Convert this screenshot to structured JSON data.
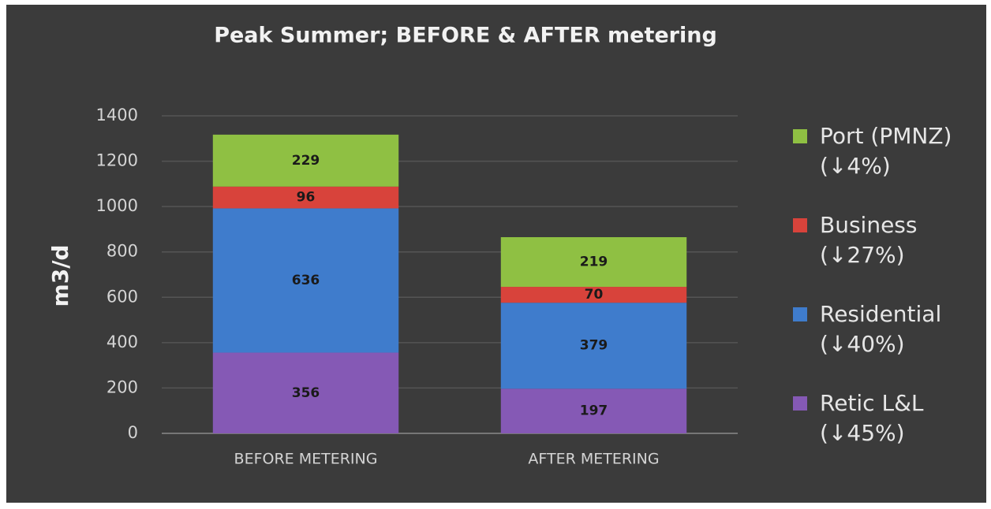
{
  "chart_data": {
    "type": "stacked_bar",
    "title": "Peak Summer; BEFORE & AFTER metering",
    "y_label": "m3/d",
    "categories": [
      "BEFORE METERING",
      "AFTER METERING"
    ],
    "series": [
      {
        "name": "Retic L&L (↓45%)",
        "color": "#8559b5",
        "values": [
          356,
          197
        ]
      },
      {
        "name": "Residential (↓40%)",
        "color": "#3f7ccc",
        "values": [
          636,
          379
        ]
      },
      {
        "name": "Business (↓27%)",
        "color": "#d8433b",
        "values": [
          96,
          70
        ]
      },
      {
        "name": "Port (PMNZ) (↓4%)",
        "color": "#8fc043",
        "values": [
          229,
          219
        ]
      }
    ],
    "ylim": [
      0,
      1400
    ],
    "yticks": [
      0,
      200,
      400,
      600,
      800,
      1000,
      1200,
      1400
    ],
    "grid": true,
    "legend": "right"
  }
}
